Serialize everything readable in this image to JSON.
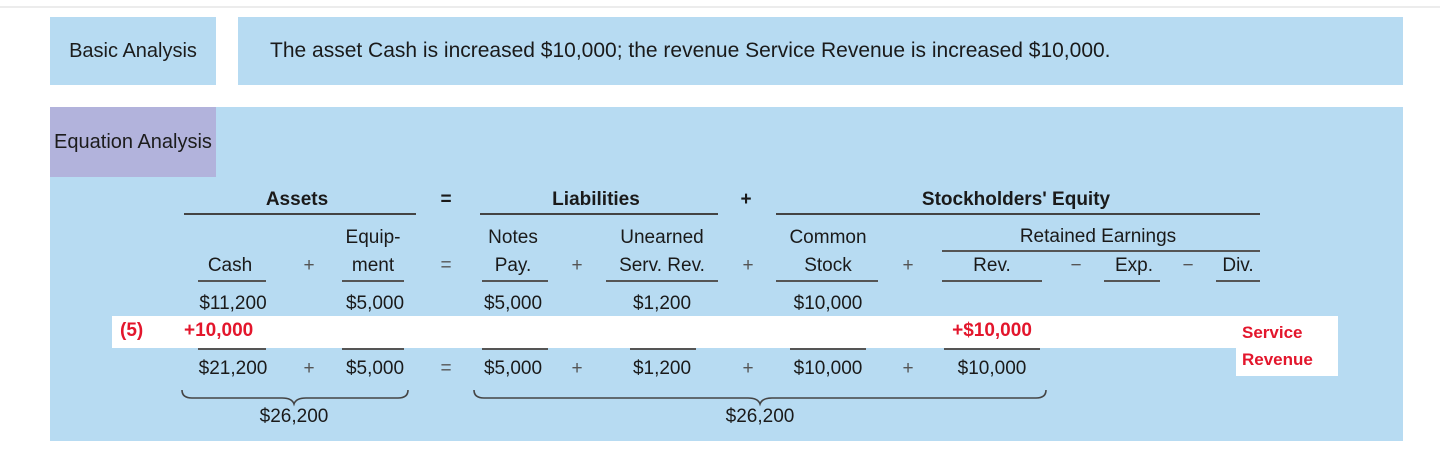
{
  "basic": {
    "label": "Basic Analysis",
    "text": "The asset Cash is increased $10,000; the revenue Service Revenue is increased $10,000."
  },
  "equation": {
    "label": "Equation Analysis",
    "groups": {
      "assets": "Assets",
      "liabilities": "Liabilities",
      "equity": "Stockholders' Equity"
    },
    "retained_earnings": "Retained Earnings",
    "columns": {
      "cash": "Cash",
      "equipment": [
        "Equip-",
        "ment"
      ],
      "notes_pay": [
        "Notes",
        "Pay."
      ],
      "unearned": [
        "Unearned",
        "Serv. Rev."
      ],
      "common_stock": [
        "Common",
        "Stock"
      ],
      "rev": "Rev.",
      "exp": "Exp.",
      "div": "Div."
    },
    "operators": {
      "eq": "=",
      "plus": "+",
      "minus": "−"
    },
    "opening": {
      "cash": "$11,200",
      "equipment": "$5,000",
      "notes_pay": "$5,000",
      "unearned": "$1,200",
      "common_stock": "$10,000"
    },
    "transaction": {
      "ref": "(5)",
      "cash": "+10,000",
      "rev": "+$10,000",
      "explanation": [
        "Service",
        "Revenue"
      ]
    },
    "ending": {
      "cash": "$21,200",
      "equipment": "$5,000",
      "notes_pay": "$5,000",
      "unearned": "$1,200",
      "common_stock": "$10,000",
      "rev": "$10,000"
    },
    "totals": {
      "assets": "$26,200",
      "liabilities_equity": "$26,200"
    }
  }
}
